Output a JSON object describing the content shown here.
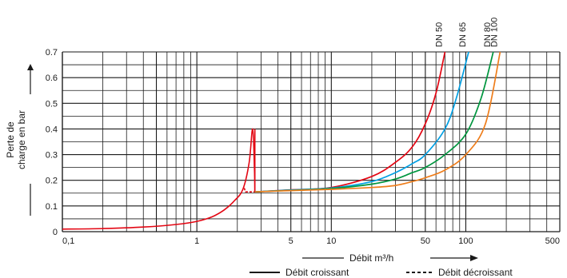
{
  "chart_data": {
    "type": "line",
    "ylabel_lines": [
      "Perte de",
      "charge en bar"
    ],
    "xlabel": "Débit m³/h",
    "xscale": "log",
    "xlim": [
      0.1,
      500
    ],
    "ylim": [
      0,
      0.7
    ],
    "x_tick_labels": [
      {
        "x": 0.1,
        "label": "0,1"
      },
      {
        "x": 1,
        "label": "1"
      },
      {
        "x": 5,
        "label": "5"
      },
      {
        "x": 10,
        "label": "10"
      },
      {
        "x": 50,
        "label": "50"
      },
      {
        "x": 100,
        "label": "100"
      },
      {
        "x": 500,
        "label": "500"
      }
    ],
    "y_tick_labels": [
      {
        "y": 0,
        "label": "0"
      },
      {
        "y": 0.1,
        "label": "0.1"
      },
      {
        "y": 0.2,
        "label": "0.2"
      },
      {
        "y": 0.3,
        "label": "0.3"
      },
      {
        "y": 0.4,
        "label": "0.4"
      },
      {
        "y": 0.5,
        "label": "0.5"
      },
      {
        "y": 0.6,
        "label": "0.6"
      },
      {
        "y": 0.7,
        "label": "0.7"
      }
    ],
    "grid": true,
    "legend": {
      "position": "bottom",
      "items": [
        {
          "label": "Débit croissant",
          "style": "solid"
        },
        {
          "label": "Débit décroissant",
          "style": "dashed"
        }
      ]
    },
    "common_series": {
      "color": "#e30613",
      "points": [
        [
          0.1,
          0.01
        ],
        [
          0.2,
          0.012
        ],
        [
          0.4,
          0.018
        ],
        [
          0.7,
          0.028
        ],
        [
          1,
          0.04
        ],
        [
          1.3,
          0.058
        ],
        [
          1.6,
          0.085
        ],
        [
          1.9,
          0.12
        ],
        [
          2.2,
          0.165
        ],
        [
          2.45,
          0.27
        ],
        [
          2.6,
          0.4
        ],
        [
          2.68,
          0.25
        ],
        [
          2.7,
          0.155
        ]
      ],
      "drop_x": 2.7,
      "drop_y": [
        0.4,
        0.155
      ],
      "decreasing_segment": [
        [
          2.25,
          0.17
        ],
        [
          2.3,
          0.155
        ],
        [
          2.7,
          0.155
        ]
      ]
    },
    "series": [
      {
        "name": "DN 50",
        "color": "#e30613",
        "points": [
          [
            2.7,
            0.155
          ],
          [
            5,
            0.163
          ],
          [
            10,
            0.172
          ],
          [
            20,
            0.215
          ],
          [
            30,
            0.27
          ],
          [
            40,
            0.33
          ],
          [
            50,
            0.42
          ],
          [
            60,
            0.54
          ],
          [
            70,
            0.7
          ]
        ]
      },
      {
        "name": "DN 65",
        "color": "#009fe3",
        "points": [
          [
            2.7,
            0.155
          ],
          [
            5,
            0.162
          ],
          [
            10,
            0.17
          ],
          [
            20,
            0.195
          ],
          [
            30,
            0.23
          ],
          [
            40,
            0.265
          ],
          [
            50,
            0.3
          ],
          [
            70,
            0.4
          ],
          [
            85,
            0.52
          ],
          [
            105,
            0.7
          ]
        ]
      },
      {
        "name": "DN 80",
        "color": "#00963f",
        "points": [
          [
            2.7,
            0.155
          ],
          [
            5,
            0.161
          ],
          [
            10,
            0.168
          ],
          [
            20,
            0.185
          ],
          [
            30,
            0.205
          ],
          [
            40,
            0.23
          ],
          [
            50,
            0.25
          ],
          [
            70,
            0.3
          ],
          [
            100,
            0.38
          ],
          [
            130,
            0.52
          ],
          [
            160,
            0.7
          ]
        ]
      },
      {
        "name": "DN 100",
        "color": "#ee7d1b",
        "points": [
          [
            2.7,
            0.155
          ],
          [
            5,
            0.16
          ],
          [
            10,
            0.165
          ],
          [
            20,
            0.172
          ],
          [
            30,
            0.18
          ],
          [
            40,
            0.195
          ],
          [
            50,
            0.21
          ],
          [
            70,
            0.24
          ],
          [
            100,
            0.3
          ],
          [
            140,
            0.42
          ],
          [
            180,
            0.7
          ]
        ]
      }
    ]
  }
}
